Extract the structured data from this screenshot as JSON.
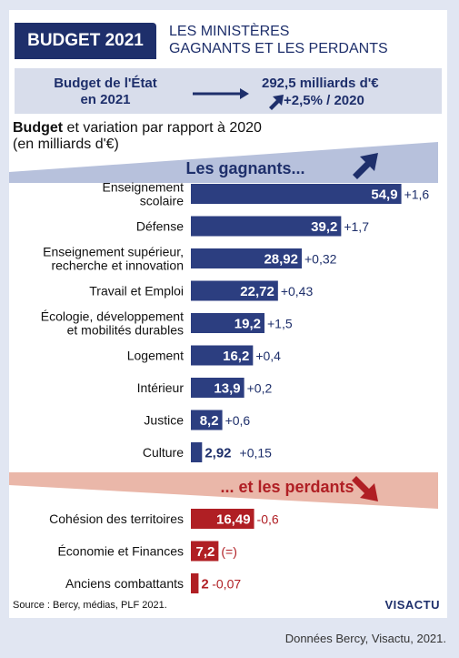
{
  "header": {
    "title": "BUDGET 2021",
    "subtitle_line1": "LES MINISTÈRES",
    "subtitle_line2": "GAGNANTS ET LES PERDANTS"
  },
  "state": {
    "label_line1": "Budget de l'État",
    "label_line2": "en 2021",
    "value": "292,5 milliards d'€",
    "variation": "+2,5% / 2020"
  },
  "subtitle": {
    "bold": "Budget",
    "rest": " et variation par rapport à 2020",
    "unit": "(en milliards d'€)"
  },
  "sections": {
    "winners": "Les gagnants...",
    "losers": "... et les perdants"
  },
  "colors": {
    "winner_bar": "#2c3e80",
    "loser_bar": "#b01f24",
    "winner_band": "#b7c1dc",
    "loser_band": "#eab7a9",
    "dark_blue": "#1e2f6b"
  },
  "chart_data": {
    "type": "bar",
    "orientation": "horizontal",
    "xlim": [
      0,
      55
    ],
    "winners": [
      {
        "label": [
          "Enseignement",
          "scolaire"
        ],
        "value": 54.9,
        "value_label": "54,9",
        "variation": "+1,6"
      },
      {
        "label": [
          "Défense"
        ],
        "value": 39.2,
        "value_label": "39,2",
        "variation": "+1,7"
      },
      {
        "label": [
          "Enseignement supérieur,",
          "recherche et innovation"
        ],
        "value": 28.92,
        "value_label": "28,92",
        "variation": "+0,32"
      },
      {
        "label": [
          "Travail et Emploi"
        ],
        "value": 22.72,
        "value_label": "22,72",
        "variation": "+0,43"
      },
      {
        "label": [
          "Écologie, développement",
          "et mobilités durables"
        ],
        "value": 19.2,
        "value_label": "19,2",
        "variation": "+1,5"
      },
      {
        "label": [
          "Logement"
        ],
        "value": 16.2,
        "value_label": "16,2",
        "variation": "+0,4"
      },
      {
        "label": [
          "Intérieur"
        ],
        "value": 13.9,
        "value_label": "13,9",
        "variation": "+0,2"
      },
      {
        "label": [
          "Justice"
        ],
        "value": 8.2,
        "value_label": "8,2",
        "variation": "+0,6"
      },
      {
        "label": [
          "Culture"
        ],
        "value": 2.92,
        "value_label": "2,92",
        "variation": "+0,15"
      }
    ],
    "losers": [
      {
        "label": [
          "Cohésion des territoires"
        ],
        "value": 16.49,
        "value_label": "16,49",
        "variation": "-0,6"
      },
      {
        "label": [
          "Économie et Finances"
        ],
        "value": 7.2,
        "value_label": "7,2",
        "variation": "(=)"
      },
      {
        "label": [
          "Anciens combattants"
        ],
        "value": 2,
        "value_label": "2",
        "variation": "-0,07"
      }
    ]
  },
  "footer": {
    "source": "Source : Bercy, médias, PLF 2021.",
    "logo": "VISACTU",
    "credit": "Données Bercy, Visactu, 2021."
  }
}
